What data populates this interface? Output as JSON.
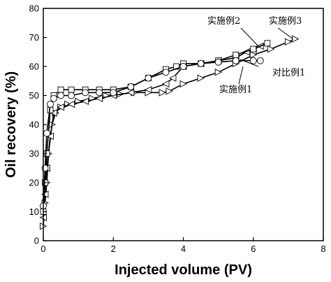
{
  "chart_data": {
    "type": "line",
    "xlabel": "Injected volume (PV)",
    "ylabel": "Oil recovery (%)",
    "xlim": [
      0,
      8
    ],
    "ylim": [
      0,
      80
    ],
    "xticks": [
      0,
      2,
      4,
      6,
      8
    ],
    "yticks": [
      0,
      10,
      20,
      30,
      40,
      50,
      60,
      70,
      80
    ],
    "grid": false,
    "legend": "annotations",
    "series": [
      {
        "name": "实施例1",
        "marker": "triangle-right",
        "x": [
          0,
          0.05,
          0.1,
          0.15,
          0.25,
          0.35,
          0.5,
          0.7,
          1.0,
          1.4,
          1.8,
          2.2,
          2.6,
          3.0,
          3.4,
          3.6,
          4.0,
          4.5,
          5.0,
          5.5,
          6.0,
          6.5,
          7.0,
          7.2
        ],
        "y": [
          5,
          13,
          20,
          30,
          40,
          44,
          46,
          47,
          48,
          49,
          50,
          50.5,
          51,
          51,
          51,
          51.5,
          54,
          56,
          58,
          61,
          64,
          66,
          68.5,
          69.5
        ]
      },
      {
        "name": "实施例2",
        "marker": "triangle-left",
        "x": [
          0,
          0.05,
          0.1,
          0.2,
          0.3,
          0.5,
          0.8,
          1.2,
          1.6,
          2.0,
          2.5,
          3.0,
          3.5,
          3.7,
          4.0,
          4.5,
          5.0,
          5.5,
          5.8,
          6.0,
          6.2
        ],
        "y": [
          8,
          16,
          25,
          36,
          44,
          46,
          47,
          48,
          49,
          50,
          51,
          52,
          54,
          56,
          60,
          61,
          62,
          63,
          65,
          66,
          67
        ]
      },
      {
        "name": "实施例3",
        "marker": "square",
        "x": [
          0,
          0.05,
          0.1,
          0.2,
          0.3,
          0.5,
          0.8,
          1.2,
          1.6,
          2.0,
          2.5,
          3.0,
          3.5,
          3.8,
          4.0,
          4.5,
          5.0,
          5.5,
          6.0,
          6.4
        ],
        "y": [
          10,
          20,
          30,
          45,
          50,
          52,
          52,
          52,
          52,
          52,
          53,
          56,
          59,
          60,
          61,
          61,
          62,
          64,
          66,
          68
        ]
      },
      {
        "name": "对比例1",
        "marker": "circle",
        "x": [
          0,
          0.05,
          0.1,
          0.2,
          0.3,
          0.5,
          0.8,
          1.2,
          1.6,
          2.0,
          2.5,
          3.0,
          3.5,
          4.0,
          4.5,
          5.0,
          5.5,
          6.0,
          6.2
        ],
        "y": [
          12,
          25,
          37,
          47,
          49,
          50,
          50,
          51,
          51,
          51,
          53,
          56,
          58,
          60,
          61,
          61.5,
          62,
          62,
          62
        ]
      }
    ]
  }
}
